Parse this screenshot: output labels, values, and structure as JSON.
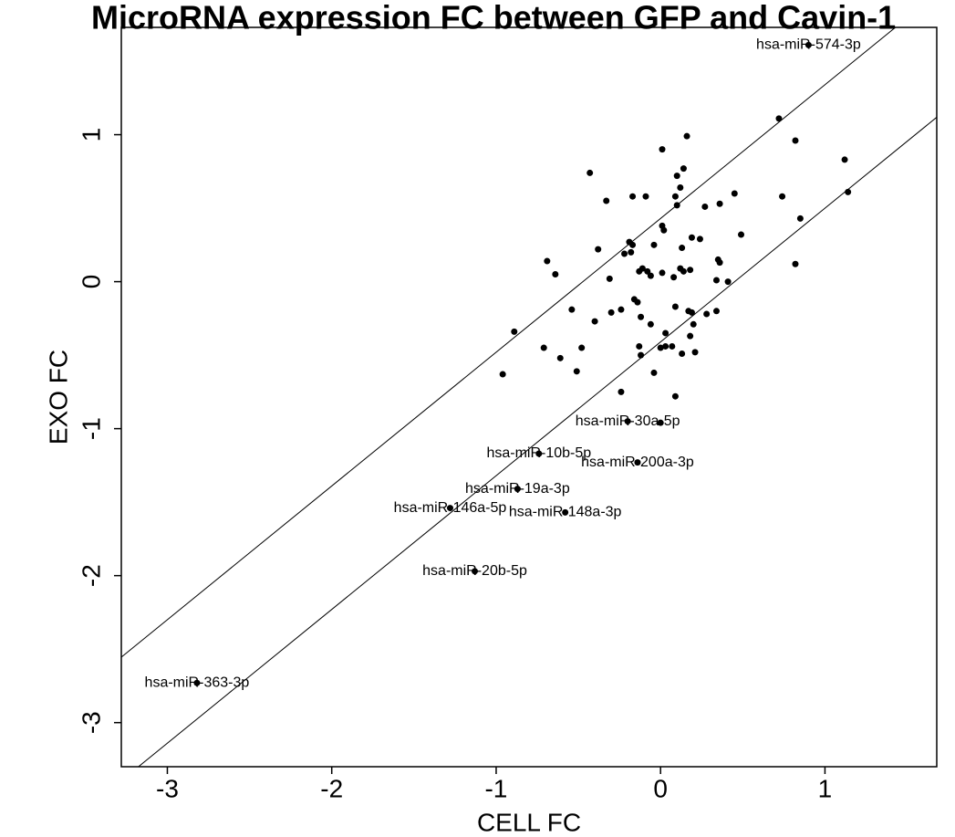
{
  "chart_data": {
    "type": "scatter",
    "title": "MicroRNA expression FC between GFP and Cavin-1",
    "x_label": "CELL FC",
    "y_label": "EXO FC",
    "xlim": [
      -3.28,
      1.68
    ],
    "ylim": [
      -3.3,
      1.73
    ],
    "xticks": [
      -3,
      -2,
      -1,
      0,
      1
    ],
    "yticks": [
      -3,
      -2,
      -1,
      0,
      1
    ],
    "color": "#000000",
    "lines": [
      {
        "slope": 0.91,
        "intercept": 0.43
      },
      {
        "slope": 0.91,
        "intercept": -0.41
      }
    ],
    "x": [
      0.72,
      0.82,
      1.12,
      0.16,
      0.01,
      -0.43,
      0.14,
      0.1,
      0.12,
      0.09,
      0.1,
      -0.17,
      -0.09,
      -0.33,
      0.45,
      0.74,
      1.14,
      0.36,
      0.27,
      0.85,
      0.01,
      0.02,
      -0.38,
      -0.19,
      -0.17,
      -0.04,
      0.24,
      0.19,
      0.13,
      0.49,
      -0.22,
      -0.18,
      -0.69,
      -0.64,
      -0.13,
      -0.11,
      -0.06,
      -0.08,
      0.01,
      0.08,
      0.14,
      0.18,
      0.12,
      0.36,
      0.35,
      0.82,
      -0.31,
      0.34,
      0.41,
      -0.16,
      -0.14,
      -0.3,
      -0.54,
      -0.4,
      -0.24,
      0.09,
      0.17,
      0.19,
      0.34,
      0.28,
      -0.12,
      -0.06,
      0.03,
      0.2,
      -0.89,
      -0.71,
      -0.48,
      -0.61,
      0.18,
      -0.13,
      -0.12,
      0.0,
      0.03,
      0.07,
      0.13,
      0.21,
      -0.96,
      -0.51,
      -0.04,
      -0.24,
      0.09,
      0.0,
      0.9,
      -0.2,
      -0.74,
      -0.14,
      -0.87,
      -1.28,
      -0.58,
      -1.13,
      -2.82
    ],
    "values": [
      1.11,
      0.96,
      0.83,
      0.99,
      0.9,
      0.74,
      0.77,
      0.72,
      0.64,
      0.58,
      0.52,
      0.58,
      0.58,
      0.55,
      0.6,
      0.58,
      0.61,
      0.53,
      0.51,
      0.43,
      0.38,
      0.35,
      0.22,
      0.27,
      0.25,
      0.25,
      0.29,
      0.3,
      0.23,
      0.32,
      0.19,
      0.2,
      0.14,
      0.05,
      0.07,
      0.09,
      0.04,
      0.07,
      0.06,
      0.03,
      0.07,
      0.08,
      0.09,
      0.13,
      0.15,
      0.12,
      0.02,
      0.01,
      0.0,
      -0.12,
      -0.14,
      -0.21,
      -0.19,
      -0.27,
      -0.19,
      -0.17,
      -0.2,
      -0.21,
      -0.2,
      -0.22,
      -0.24,
      -0.29,
      -0.35,
      -0.29,
      -0.34,
      -0.45,
      -0.45,
      -0.52,
      -0.37,
      -0.44,
      -0.5,
      -0.45,
      -0.44,
      -0.44,
      -0.49,
      -0.48,
      -0.63,
      -0.61,
      -0.62,
      -0.75,
      -0.78,
      -0.96,
      1.61,
      -0.95,
      -1.17,
      -1.23,
      -1.41,
      -1.54,
      -1.57,
      -1.97,
      -2.73
    ],
    "point_labels": [
      null,
      null,
      null,
      null,
      null,
      null,
      null,
      null,
      null,
      null,
      null,
      null,
      null,
      null,
      null,
      null,
      null,
      null,
      null,
      null,
      null,
      null,
      null,
      null,
      null,
      null,
      null,
      null,
      null,
      null,
      null,
      null,
      null,
      null,
      null,
      null,
      null,
      null,
      null,
      null,
      null,
      null,
      null,
      null,
      null,
      null,
      null,
      null,
      null,
      null,
      null,
      null,
      null,
      null,
      null,
      null,
      null,
      null,
      null,
      null,
      null,
      null,
      null,
      null,
      null,
      null,
      null,
      null,
      null,
      null,
      null,
      null,
      null,
      null,
      null,
      null,
      null,
      null,
      null,
      null,
      null,
      null,
      "hsa-miR-574-3p",
      "hsa-miR-30a-5p",
      "hsa-miR-10b-5p",
      "hsa-miR-200a-3p",
      "hsa-miR-19a-3p",
      "hsa-miR-146a-5p",
      "hsa-miR-148a-3p",
      "hsa-miR-20b-5p",
      "hsa-miR-363-3p"
    ]
  }
}
